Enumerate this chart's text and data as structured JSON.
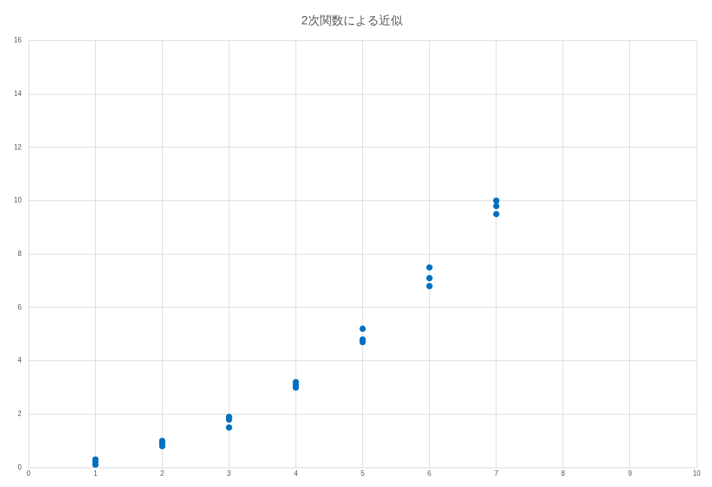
{
  "chart_data": {
    "type": "scatter",
    "title": "2次関数による近似",
    "x": [
      1,
      1,
      1,
      2,
      2,
      2,
      3,
      3,
      3,
      4,
      4,
      4,
      5,
      5,
      5,
      6,
      6,
      6,
      7,
      7,
      7
    ],
    "values": [
      0.3,
      0.2,
      0.1,
      1.0,
      0.9,
      0.8,
      1.9,
      1.8,
      1.5,
      3.2,
      3.1,
      3.0,
      5.2,
      4.8,
      4.7,
      7.5,
      7.1,
      6.8,
      10.0,
      9.8,
      9.5
    ],
    "color": "#0070c0",
    "marker": "circle",
    "xlim": [
      0,
      10
    ],
    "xticks": [
      0,
      1,
      2,
      3,
      4,
      5,
      6,
      7,
      8,
      9,
      10
    ],
    "ylim": [
      0,
      16
    ],
    "yticks": [
      0,
      2,
      4,
      6,
      8,
      10,
      12,
      14,
      16
    ],
    "grid": true
  }
}
